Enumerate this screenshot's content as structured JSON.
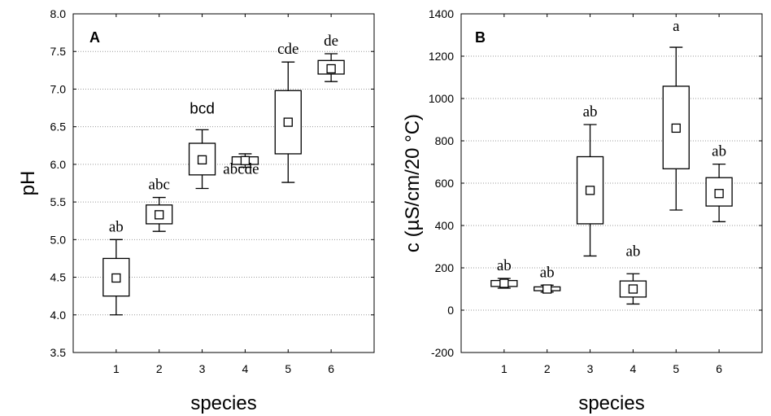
{
  "chart_data": [
    {
      "type": "box",
      "panel_label": "A",
      "xlabel": "species",
      "ylabel": "pH",
      "ylim": [
        3.5,
        8.0
      ],
      "yticks": [
        "3.5",
        "4.0",
        "4.5",
        "5.0",
        "5.5",
        "6.0",
        "6.5",
        "7.0",
        "7.5",
        "8.0"
      ],
      "xlim": [
        0,
        7
      ],
      "categories": [
        "1",
        "2",
        "3",
        "4",
        "5",
        "6"
      ],
      "grid": "horizontal dotted",
      "boxes": [
        {
          "category": "1",
          "mean": 4.49,
          "box_low": 4.25,
          "box_high": 4.75,
          "whisker_low": 4.0,
          "whisker_high": 5.0,
          "group": "ab"
        },
        {
          "category": "2",
          "mean": 5.33,
          "box_low": 5.21,
          "box_high": 5.46,
          "whisker_low": 5.11,
          "whisker_high": 5.56,
          "group": "abc"
        },
        {
          "category": "3",
          "mean": 6.06,
          "box_low": 5.86,
          "box_high": 6.28,
          "whisker_low": 5.68,
          "whisker_high": 6.46,
          "group": "bcd"
        },
        {
          "category": "4",
          "mean": 6.05,
          "box_low": 6.0,
          "box_high": 6.1,
          "whisker_low": 5.96,
          "whisker_high": 6.14,
          "group": "abcde"
        },
        {
          "category": "5",
          "mean": 6.56,
          "box_low": 6.14,
          "box_high": 6.98,
          "whisker_low": 5.76,
          "whisker_high": 7.36,
          "group": "cde"
        },
        {
          "category": "6",
          "mean": 7.27,
          "box_low": 7.2,
          "box_high": 7.38,
          "whisker_low": 7.1,
          "whisker_high": 7.47,
          "group": "de"
        }
      ]
    },
    {
      "type": "box",
      "panel_label": "B",
      "xlabel": "species",
      "ylabel": "c (µS/cm/20 °C)",
      "ylim": [
        -200,
        1400
      ],
      "yticks": [
        "-200",
        "0",
        "200",
        "400",
        "600",
        "800",
        "1000",
        "1200",
        "1400"
      ],
      "xlim": [
        0,
        7
      ],
      "categories": [
        "1",
        "2",
        "3",
        "4",
        "5",
        "6"
      ],
      "grid": "horizontal dotted",
      "boxes": [
        {
          "category": "1",
          "mean": 127,
          "box_low": 112,
          "box_high": 140,
          "whisker_low": 104,
          "whisker_high": 150,
          "group": "ab"
        },
        {
          "category": "2",
          "mean": 100,
          "box_low": 92,
          "box_high": 110,
          "whisker_low": 85,
          "whisker_high": 118,
          "group": "ab"
        },
        {
          "category": "3",
          "mean": 566,
          "box_low": 408,
          "box_high": 725,
          "whisker_low": 256,
          "whisker_high": 877,
          "group": "ab"
        },
        {
          "category": "4",
          "mean": 100,
          "box_low": 62,
          "box_high": 138,
          "whisker_low": 29,
          "whisker_high": 172,
          "group": "ab"
        },
        {
          "category": "5",
          "mean": 860,
          "box_low": 668,
          "box_high": 1058,
          "whisker_low": 473,
          "whisker_high": 1242,
          "group": "a"
        },
        {
          "category": "6",
          "mean": 551,
          "box_low": 492,
          "box_high": 626,
          "whisker_low": 418,
          "whisker_high": 690,
          "group": "ab"
        }
      ]
    }
  ]
}
